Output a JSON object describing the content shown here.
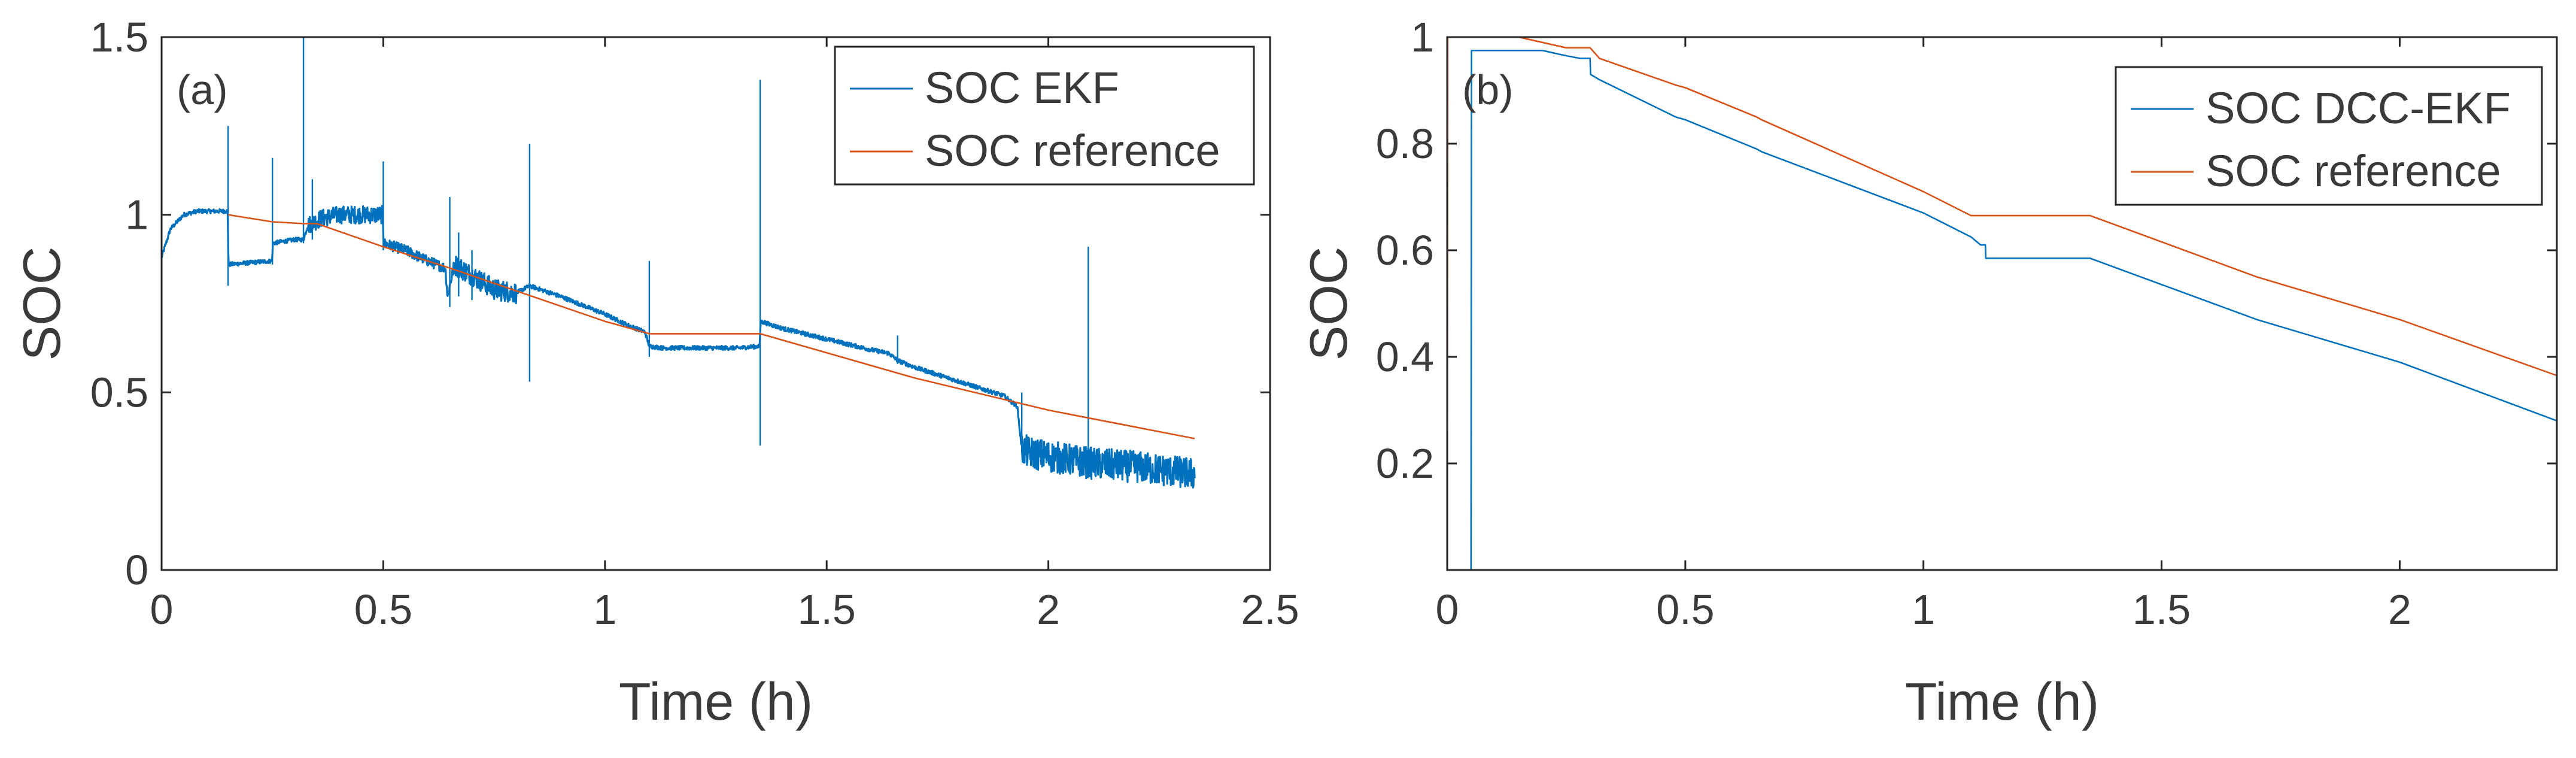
{
  "chart_data": [
    {
      "type": "line",
      "panel_label": "(a)",
      "xlabel": "Time (h)",
      "ylabel": "SOC",
      "xlim": [
        0,
        2.5
      ],
      "ylim": [
        0,
        1.5
      ],
      "xticks": [
        0,
        0.5,
        1,
        1.5,
        2,
        2.5
      ],
      "xtick_labels": [
        "0",
        "0.5",
        "1",
        "1.5",
        "2",
        "2.5"
      ],
      "yticks": [
        0,
        0.5,
        1,
        1.5
      ],
      "ytick_labels": [
        "0",
        "0.5",
        "1",
        "1.5"
      ],
      "grid": false,
      "legend_position": "top-right",
      "series": [
        {
          "name": "SOC EKF",
          "color": "#0072BD",
          "noisy": true,
          "x": [
            0,
            0.02,
            0.05,
            0.08,
            0.1,
            0.149,
            0.151,
            0.2,
            0.249,
            0.251,
            0.3,
            0.32,
            0.33,
            0.36,
            0.4,
            0.45,
            0.48,
            0.499,
            0.501,
            0.55,
            0.6,
            0.64,
            0.645,
            0.66,
            0.7,
            0.75,
            0.8,
            0.83,
            0.9,
            1.0,
            1.05,
            1.09,
            1.1,
            1.13,
            1.2,
            1.3,
            1.349,
            1.351,
            1.4,
            1.5,
            1.6,
            1.64,
            1.66,
            1.7,
            1.8,
            1.9,
            1.93,
            1.94,
            1.96,
            2.0,
            2.1,
            2.2,
            2.33
          ],
          "y": [
            0.88,
            0.96,
            1.0,
            1.01,
            1.01,
            1.01,
            0.86,
            0.865,
            0.87,
            0.92,
            0.93,
            0.93,
            0.97,
            0.99,
            1.0,
            1.0,
            1.0,
            1.0,
            0.92,
            0.9,
            0.87,
            0.85,
            0.77,
            0.86,
            0.83,
            0.79,
            0.78,
            0.8,
            0.77,
            0.72,
            0.69,
            0.67,
            0.63,
            0.625,
            0.625,
            0.625,
            0.63,
            0.7,
            0.68,
            0.65,
            0.62,
            0.61,
            0.59,
            0.57,
            0.53,
            0.49,
            0.46,
            0.34,
            0.33,
            0.32,
            0.3,
            0.29,
            0.27
          ],
          "spikes": [
            {
              "x": 0.15,
              "y": [
                0.8,
                1.25
              ]
            },
            {
              "x": 0.25,
              "y": [
                0.86,
                1.16
              ]
            },
            {
              "x": 0.32,
              "y": [
                0.92,
                1.52
              ]
            },
            {
              "x": 0.34,
              "y": [
                0.93,
                1.1
              ]
            },
            {
              "x": 0.5,
              "y": [
                0.9,
                1.15
              ]
            },
            {
              "x": 0.65,
              "y": [
                0.74,
                1.05
              ]
            },
            {
              "x": 0.67,
              "y": [
                0.77,
                0.95
              ]
            },
            {
              "x": 0.7,
              "y": [
                0.76,
                0.9
              ]
            },
            {
              "x": 0.83,
              "y": [
                0.53,
                1.2
              ]
            },
            {
              "x": 1.1,
              "y": [
                0.6,
                0.87
              ]
            },
            {
              "x": 1.35,
              "y": [
                0.35,
                1.38
              ]
            },
            {
              "x": 1.66,
              "y": [
                0.58,
                0.66
              ]
            },
            {
              "x": 1.94,
              "y": [
                0.33,
                0.5
              ]
            },
            {
              "x": 2.09,
              "y": [
                0.32,
                0.91
              ]
            }
          ]
        },
        {
          "name": "SOC reference",
          "color": "#D95319",
          "noisy": false,
          "x": [
            0.15,
            0.25,
            0.32,
            0.35,
            0.5,
            0.65,
            1.0,
            1.1,
            1.35,
            1.7,
            2.0,
            2.33
          ],
          "y": [
            1.0,
            0.98,
            0.975,
            0.975,
            0.91,
            0.85,
            0.7,
            0.665,
            0.665,
            0.54,
            0.45,
            0.37
          ]
        }
      ]
    },
    {
      "type": "line",
      "panel_label": "(b)",
      "xlabel": "Time (h)",
      "ylabel": "SOC",
      "xlim": [
        0,
        2.33
      ],
      "ylim": [
        0,
        1
      ],
      "xticks": [
        0,
        0.5,
        1,
        1.5,
        2
      ],
      "xtick_labels": [
        "0",
        "0.5",
        "1",
        "1.5",
        "2"
      ],
      "yticks": [
        0.2,
        0.4,
        0.6,
        0.8,
        1
      ],
      "ytick_labels": [
        "0.2",
        "0.4",
        "0.6",
        "0.8",
        "1"
      ],
      "grid": false,
      "legend_position": "top-right",
      "series": [
        {
          "name": "SOC DCC-EKF",
          "color": "#0072BD",
          "noisy": false,
          "x": [
            0.05,
            0.051,
            0.1,
            0.2,
            0.25,
            0.28,
            0.3,
            0.301,
            0.32,
            0.48,
            0.5,
            0.65,
            0.66,
            1.0,
            1.1,
            1.12,
            1.13,
            1.131,
            1.35,
            1.7,
            2.0,
            2.33
          ],
          "y": [
            0.0,
            0.975,
            0.975,
            0.975,
            0.965,
            0.96,
            0.96,
            0.93,
            0.92,
            0.85,
            0.845,
            0.79,
            0.785,
            0.67,
            0.625,
            0.61,
            0.61,
            0.585,
            0.585,
            0.47,
            0.39,
            0.28
          ]
        },
        {
          "name": "SOC reference",
          "color": "#D95319",
          "noisy": false,
          "x": [
            0.0,
            0.001,
            0.02,
            0.1,
            0.15,
            0.25,
            0.3,
            0.32,
            0.48,
            0.5,
            0.65,
            0.66,
            1.0,
            1.1,
            1.35,
            1.7,
            2.0,
            2.33
          ],
          "y": [
            0.0,
            1.0,
            1.0,
            1.0,
            1.0,
            0.98,
            0.98,
            0.96,
            0.91,
            0.905,
            0.85,
            0.845,
            0.71,
            0.665,
            0.665,
            0.55,
            0.47,
            0.365
          ]
        }
      ]
    }
  ]
}
